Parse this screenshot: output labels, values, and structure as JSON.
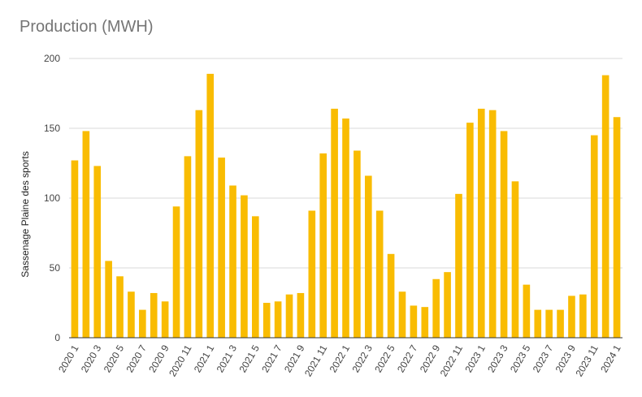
{
  "chart_data": {
    "type": "bar",
    "title": "Production (MWH)",
    "xlabel": "",
    "ylabel": "Sassenage Plaine des sports",
    "ylim": [
      0,
      200
    ],
    "yticks": [
      0,
      50,
      100,
      150,
      200
    ],
    "grid": true,
    "legend": "none",
    "colors": {
      "bar": "#F9BC02",
      "grid": "#D9D9D9",
      "axis": "#333333"
    },
    "categories": [
      "2020 1",
      "2020 2",
      "2020 3",
      "2020 4",
      "2020 5",
      "2020 6",
      "2020 7",
      "2020 8",
      "2020 9",
      "2020 10",
      "2020 11",
      "2020 12",
      "2021 1",
      "2021 2",
      "2021 3",
      "2021 4",
      "2021 5",
      "2021 6",
      "2021 7",
      "2021 8",
      "2021 9",
      "2021 10",
      "2021 11",
      "2021 12",
      "2022 1",
      "2022 2",
      "2022 3",
      "2022 4",
      "2022 5",
      "2022 6",
      "2022 7",
      "2022 8",
      "2022 9",
      "2022 10",
      "2022 11",
      "2022 12",
      "2023 1",
      "2023 2",
      "2023 3",
      "2023 4",
      "2023 5",
      "2023 6",
      "2023 7",
      "2023 8",
      "2023 9",
      "2023 10",
      "2023 11",
      "2023 12",
      "2024 1"
    ],
    "tick_labels": [
      "2020 1",
      "2020 3",
      "2020 5",
      "2020 7",
      "2020 9",
      "2020 11",
      "2021 1",
      "2021 3",
      "2021 5",
      "2021 7",
      "2021 9",
      "2021 11",
      "2022 1",
      "2022 3",
      "2022 5",
      "2022 7",
      "2022 9",
      "2022 11",
      "2023 1",
      "2023 3",
      "2023 5",
      "2023 7",
      "2023 9",
      "2023 11",
      "2024 1"
    ],
    "values": [
      127,
      148,
      123,
      55,
      44,
      33,
      20,
      32,
      26,
      94,
      130,
      163,
      189,
      129,
      109,
      102,
      87,
      25,
      26,
      31,
      32,
      91,
      132,
      164,
      157,
      134,
      116,
      91,
      60,
      33,
      23,
      22,
      42,
      47,
      103,
      154,
      164,
      163,
      148,
      112,
      38,
      20,
      20,
      20,
      30,
      31,
      145,
      188,
      158
    ]
  }
}
